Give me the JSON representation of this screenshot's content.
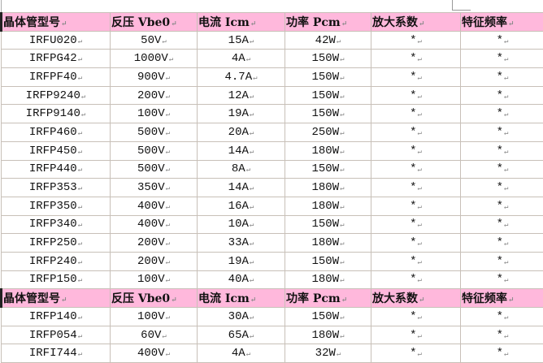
{
  "table": {
    "headers": [
      "晶体管型号",
      "反压 Vbe0",
      "电流 Icm",
      "功率 Pcm",
      "放大系数",
      "特征频率"
    ],
    "rows_block1": [
      [
        "IRFU020",
        "50V",
        "15A",
        "42W",
        "*",
        "*"
      ],
      [
        "IRFPG42",
        "1000V",
        "4A",
        "150W",
        "*",
        "*"
      ],
      [
        "IRFPF40",
        "900V",
        "4.7A",
        "150W",
        "*",
        "*"
      ],
      [
        "IRFP9240",
        "200V",
        "12A",
        "150W",
        "*",
        "*"
      ],
      [
        "IRFP9140",
        "100V",
        "19A",
        "150W",
        "*",
        "*"
      ],
      [
        "IRFP460",
        "500V",
        "20A",
        "250W",
        "*",
        "*"
      ],
      [
        "IRFP450",
        "500V",
        "14A",
        "180W",
        "*",
        "*"
      ],
      [
        "IRFP440",
        "500V",
        "8A",
        "150W",
        "*",
        "*"
      ],
      [
        "IRFP353",
        "350V",
        "14A",
        "180W",
        "*",
        "*"
      ],
      [
        "IRFP350",
        "400V",
        "16A",
        "180W",
        "*",
        "*"
      ],
      [
        "IRFP340",
        "400V",
        "10A",
        "150W",
        "*",
        "*"
      ],
      [
        "IRFP250",
        "200V",
        "33A",
        "180W",
        "*",
        "*"
      ],
      [
        "IRFP240",
        "200V",
        "19A",
        "150W",
        "*",
        "*"
      ],
      [
        "IRFP150",
        "100V",
        "40A",
        "180W",
        "*",
        "*"
      ]
    ],
    "rows_block2": [
      [
        "IRFP140",
        "100V",
        "30A",
        "150W",
        "*",
        "*"
      ],
      [
        "IRFP054",
        "60V",
        "65A",
        "180W",
        "*",
        "*"
      ],
      [
        "IRFI744",
        "400V",
        "4A",
        "32W",
        "*",
        "*"
      ]
    ]
  }
}
